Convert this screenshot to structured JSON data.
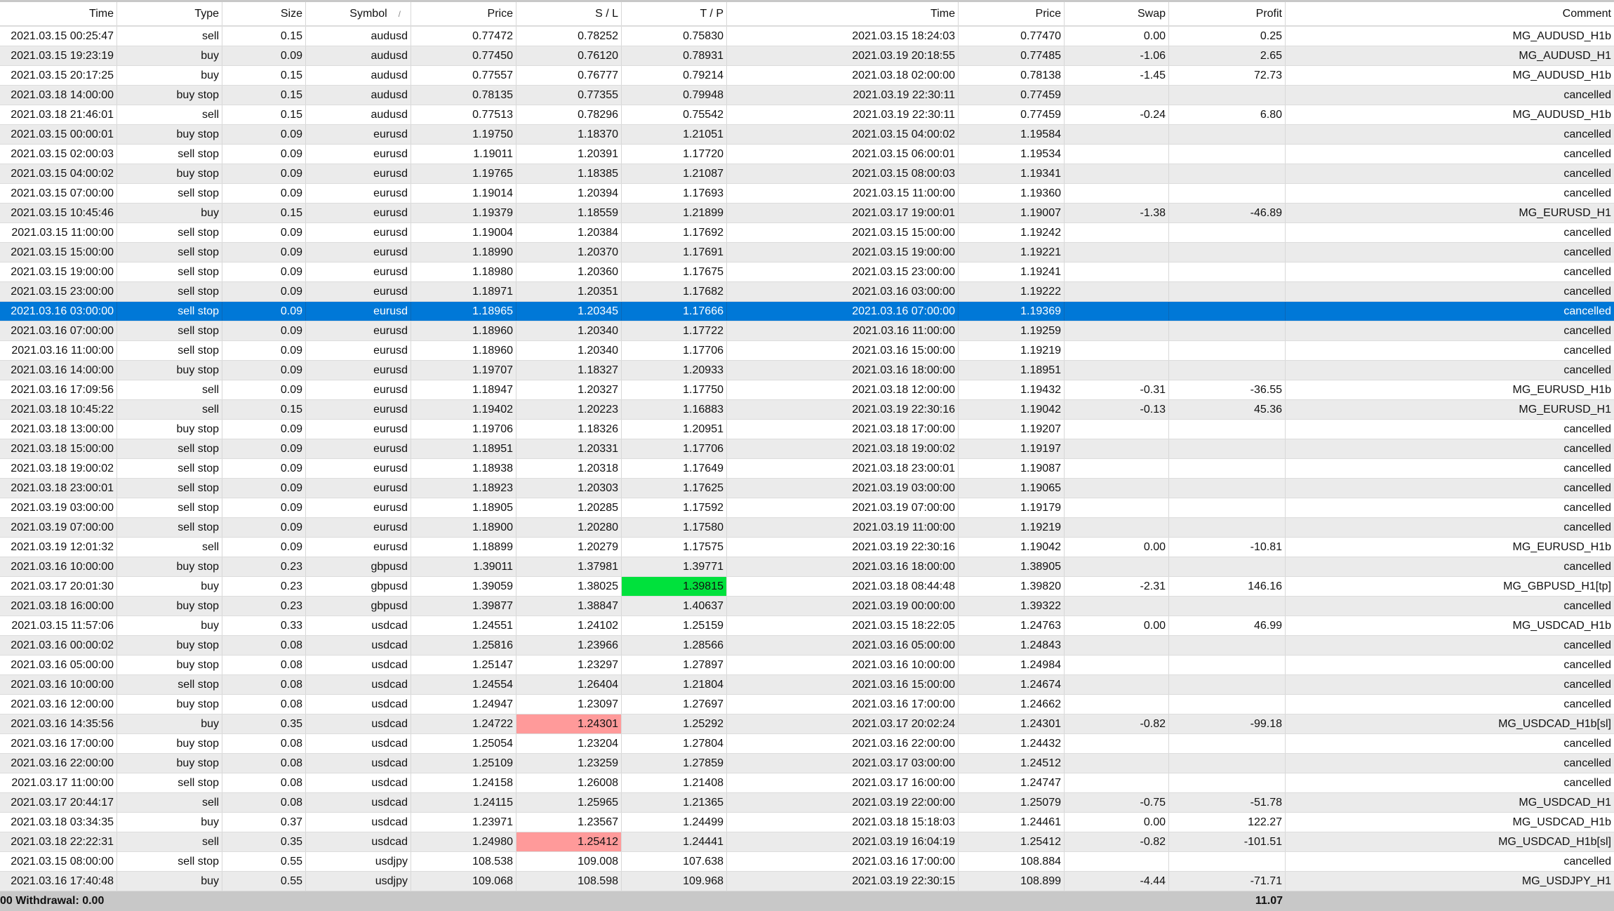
{
  "columns": [
    "Time",
    "Type",
    "Size",
    "Symbol",
    "Price",
    "S / L",
    "T / P",
    "Time",
    "Price",
    "Swap",
    "Profit",
    "Comment"
  ],
  "sort_indicator": "/",
  "selected_row": 14,
  "colors": {
    "selected": "#0078d7",
    "take_profit_hit": "#00e13c",
    "stop_loss_hit": "#ff9a9a",
    "alt_row": "#ebebeb",
    "footer": "#c8c8c8"
  },
  "highlights": [
    {
      "row": 28,
      "col": 6,
      "kind": "take_profit_hit"
    },
    {
      "row": 35,
      "col": 5,
      "kind": "stop_loss_hit"
    },
    {
      "row": 41,
      "col": 5,
      "kind": "stop_loss_hit"
    }
  ],
  "rows": [
    [
      "2021.03.15 00:25:47",
      "sell",
      "0.15",
      "audusd",
      "0.77472",
      "0.78252",
      "0.75830",
      "2021.03.15 18:24:03",
      "0.77470",
      "0.00",
      "0.25",
      "MG_AUDUSD_H1b"
    ],
    [
      "2021.03.15 19:23:19",
      "buy",
      "0.09",
      "audusd",
      "0.77450",
      "0.76120",
      "0.78931",
      "2021.03.19 20:18:55",
      "0.77485",
      "-1.06",
      "2.65",
      "MG_AUDUSD_H1"
    ],
    [
      "2021.03.15 20:17:25",
      "buy",
      "0.15",
      "audusd",
      "0.77557",
      "0.76777",
      "0.79214",
      "2021.03.18 02:00:00",
      "0.78138",
      "-1.45",
      "72.73",
      "MG_AUDUSD_H1b"
    ],
    [
      "2021.03.18 14:00:00",
      "buy stop",
      "0.15",
      "audusd",
      "0.78135",
      "0.77355",
      "0.79948",
      "2021.03.19 22:30:11",
      "0.77459",
      "",
      "",
      "cancelled"
    ],
    [
      "2021.03.18 21:46:01",
      "sell",
      "0.15",
      "audusd",
      "0.77513",
      "0.78296",
      "0.75542",
      "2021.03.19 22:30:11",
      "0.77459",
      "-0.24",
      "6.80",
      "MG_AUDUSD_H1b"
    ],
    [
      "2021.03.15 00:00:01",
      "buy stop",
      "0.09",
      "eurusd",
      "1.19750",
      "1.18370",
      "1.21051",
      "2021.03.15 04:00:02",
      "1.19584",
      "",
      "",
      "cancelled"
    ],
    [
      "2021.03.15 02:00:03",
      "sell stop",
      "0.09",
      "eurusd",
      "1.19011",
      "1.20391",
      "1.17720",
      "2021.03.15 06:00:01",
      "1.19534",
      "",
      "",
      "cancelled"
    ],
    [
      "2021.03.15 04:00:02",
      "buy stop",
      "0.09",
      "eurusd",
      "1.19765",
      "1.18385",
      "1.21087",
      "2021.03.15 08:00:03",
      "1.19341",
      "",
      "",
      "cancelled"
    ],
    [
      "2021.03.15 07:00:00",
      "sell stop",
      "0.09",
      "eurusd",
      "1.19014",
      "1.20394",
      "1.17693",
      "2021.03.15 11:00:00",
      "1.19360",
      "",
      "",
      "cancelled"
    ],
    [
      "2021.03.15 10:45:46",
      "buy",
      "0.15",
      "eurusd",
      "1.19379",
      "1.18559",
      "1.21899",
      "2021.03.17 19:00:01",
      "1.19007",
      "-1.38",
      "-46.89",
      "MG_EURUSD_H1"
    ],
    [
      "2021.03.15 11:00:00",
      "sell stop",
      "0.09",
      "eurusd",
      "1.19004",
      "1.20384",
      "1.17692",
      "2021.03.15 15:00:00",
      "1.19242",
      "",
      "",
      "cancelled"
    ],
    [
      "2021.03.15 15:00:00",
      "sell stop",
      "0.09",
      "eurusd",
      "1.18990",
      "1.20370",
      "1.17691",
      "2021.03.15 19:00:00",
      "1.19221",
      "",
      "",
      "cancelled"
    ],
    [
      "2021.03.15 19:00:00",
      "sell stop",
      "0.09",
      "eurusd",
      "1.18980",
      "1.20360",
      "1.17675",
      "2021.03.15 23:00:00",
      "1.19241",
      "",
      "",
      "cancelled"
    ],
    [
      "2021.03.15 23:00:00",
      "sell stop",
      "0.09",
      "eurusd",
      "1.18971",
      "1.20351",
      "1.17682",
      "2021.03.16 03:00:00",
      "1.19222",
      "",
      "",
      "cancelled"
    ],
    [
      "2021.03.16 03:00:00",
      "sell stop",
      "0.09",
      "eurusd",
      "1.18965",
      "1.20345",
      "1.17666",
      "2021.03.16 07:00:00",
      "1.19369",
      "",
      "",
      "cancelled"
    ],
    [
      "2021.03.16 07:00:00",
      "sell stop",
      "0.09",
      "eurusd",
      "1.18960",
      "1.20340",
      "1.17722",
      "2021.03.16 11:00:00",
      "1.19259",
      "",
      "",
      "cancelled"
    ],
    [
      "2021.03.16 11:00:00",
      "sell stop",
      "0.09",
      "eurusd",
      "1.18960",
      "1.20340",
      "1.17706",
      "2021.03.16 15:00:00",
      "1.19219",
      "",
      "",
      "cancelled"
    ],
    [
      "2021.03.16 14:00:00",
      "buy stop",
      "0.09",
      "eurusd",
      "1.19707",
      "1.18327",
      "1.20933",
      "2021.03.16 18:00:00",
      "1.18951",
      "",
      "",
      "cancelled"
    ],
    [
      "2021.03.16 17:09:56",
      "sell",
      "0.09",
      "eurusd",
      "1.18947",
      "1.20327",
      "1.17750",
      "2021.03.18 12:00:00",
      "1.19432",
      "-0.31",
      "-36.55",
      "MG_EURUSD_H1b"
    ],
    [
      "2021.03.18 10:45:22",
      "sell",
      "0.15",
      "eurusd",
      "1.19402",
      "1.20223",
      "1.16883",
      "2021.03.19 22:30:16",
      "1.19042",
      "-0.13",
      "45.36",
      "MG_EURUSD_H1"
    ],
    [
      "2021.03.18 13:00:00",
      "buy stop",
      "0.09",
      "eurusd",
      "1.19706",
      "1.18326",
      "1.20951",
      "2021.03.18 17:00:00",
      "1.19207",
      "",
      "",
      "cancelled"
    ],
    [
      "2021.03.18 15:00:00",
      "sell stop",
      "0.09",
      "eurusd",
      "1.18951",
      "1.20331",
      "1.17706",
      "2021.03.18 19:00:02",
      "1.19197",
      "",
      "",
      "cancelled"
    ],
    [
      "2021.03.18 19:00:02",
      "sell stop",
      "0.09",
      "eurusd",
      "1.18938",
      "1.20318",
      "1.17649",
      "2021.03.18 23:00:01",
      "1.19087",
      "",
      "",
      "cancelled"
    ],
    [
      "2021.03.18 23:00:01",
      "sell stop",
      "0.09",
      "eurusd",
      "1.18923",
      "1.20303",
      "1.17625",
      "2021.03.19 03:00:00",
      "1.19065",
      "",
      "",
      "cancelled"
    ],
    [
      "2021.03.19 03:00:00",
      "sell stop",
      "0.09",
      "eurusd",
      "1.18905",
      "1.20285",
      "1.17592",
      "2021.03.19 07:00:00",
      "1.19179",
      "",
      "",
      "cancelled"
    ],
    [
      "2021.03.19 07:00:00",
      "sell stop",
      "0.09",
      "eurusd",
      "1.18900",
      "1.20280",
      "1.17580",
      "2021.03.19 11:00:00",
      "1.19219",
      "",
      "",
      "cancelled"
    ],
    [
      "2021.03.19 12:01:32",
      "sell",
      "0.09",
      "eurusd",
      "1.18899",
      "1.20279",
      "1.17575",
      "2021.03.19 22:30:16",
      "1.19042",
      "0.00",
      "-10.81",
      "MG_EURUSD_H1b"
    ],
    [
      "2021.03.16 10:00:00",
      "buy stop",
      "0.23",
      "gbpusd",
      "1.39011",
      "1.37981",
      "1.39771",
      "2021.03.16 18:00:00",
      "1.38905",
      "",
      "",
      "cancelled"
    ],
    [
      "2021.03.17 20:01:30",
      "buy",
      "0.23",
      "gbpusd",
      "1.39059",
      "1.38025",
      "1.39815",
      "2021.03.18 08:44:48",
      "1.39820",
      "-2.31",
      "146.16",
      "MG_GBPUSD_H1[tp]"
    ],
    [
      "2021.03.18 16:00:00",
      "buy stop",
      "0.23",
      "gbpusd",
      "1.39877",
      "1.38847",
      "1.40637",
      "2021.03.19 00:00:00",
      "1.39322",
      "",
      "",
      "cancelled"
    ],
    [
      "2021.03.15 11:57:06",
      "buy",
      "0.33",
      "usdcad",
      "1.24551",
      "1.24102",
      "1.25159",
      "2021.03.15 18:22:05",
      "1.24763",
      "0.00",
      "46.99",
      "MG_USDCAD_H1b"
    ],
    [
      "2021.03.16 00:00:02",
      "buy stop",
      "0.08",
      "usdcad",
      "1.25816",
      "1.23966",
      "1.28566",
      "2021.03.16 05:00:00",
      "1.24843",
      "",
      "",
      "cancelled"
    ],
    [
      "2021.03.16 05:00:00",
      "buy stop",
      "0.08",
      "usdcad",
      "1.25147",
      "1.23297",
      "1.27897",
      "2021.03.16 10:00:00",
      "1.24984",
      "",
      "",
      "cancelled"
    ],
    [
      "2021.03.16 10:00:00",
      "sell stop",
      "0.08",
      "usdcad",
      "1.24554",
      "1.26404",
      "1.21804",
      "2021.03.16 15:00:00",
      "1.24674",
      "",
      "",
      "cancelled"
    ],
    [
      "2021.03.16 12:00:00",
      "buy stop",
      "0.08",
      "usdcad",
      "1.24947",
      "1.23097",
      "1.27697",
      "2021.03.16 17:00:00",
      "1.24662",
      "",
      "",
      "cancelled"
    ],
    [
      "2021.03.16 14:35:56",
      "buy",
      "0.35",
      "usdcad",
      "1.24722",
      "1.24301",
      "1.25292",
      "2021.03.17 20:02:24",
      "1.24301",
      "-0.82",
      "-99.18",
      "MG_USDCAD_H1b[sl]"
    ],
    [
      "2021.03.16 17:00:00",
      "buy stop",
      "0.08",
      "usdcad",
      "1.25054",
      "1.23204",
      "1.27804",
      "2021.03.16 22:00:00",
      "1.24432",
      "",
      "",
      "cancelled"
    ],
    [
      "2021.03.16 22:00:00",
      "buy stop",
      "0.08",
      "usdcad",
      "1.25109",
      "1.23259",
      "1.27859",
      "2021.03.17 03:00:00",
      "1.24512",
      "",
      "",
      "cancelled"
    ],
    [
      "2021.03.17 11:00:00",
      "sell stop",
      "0.08",
      "usdcad",
      "1.24158",
      "1.26008",
      "1.21408",
      "2021.03.17 16:00:00",
      "1.24747",
      "",
      "",
      "cancelled"
    ],
    [
      "2021.03.17 20:44:17",
      "sell",
      "0.08",
      "usdcad",
      "1.24115",
      "1.25965",
      "1.21365",
      "2021.03.19 22:00:00",
      "1.25079",
      "-0.75",
      "-51.78",
      "MG_USDCAD_H1"
    ],
    [
      "2021.03.18 03:34:35",
      "buy",
      "0.37",
      "usdcad",
      "1.23971",
      "1.23567",
      "1.24499",
      "2021.03.18 15:18:03",
      "1.24461",
      "0.00",
      "122.27",
      "MG_USDCAD_H1b"
    ],
    [
      "2021.03.18 22:22:31",
      "sell",
      "0.35",
      "usdcad",
      "1.24980",
      "1.25412",
      "1.24441",
      "2021.03.19 16:04:19",
      "1.25412",
      "-0.82",
      "-101.51",
      "MG_USDCAD_H1b[sl]"
    ],
    [
      "2021.03.15 08:00:00",
      "sell stop",
      "0.55",
      "usdjpy",
      "108.538",
      "109.008",
      "107.638",
      "2021.03.16 17:00:00",
      "108.884",
      "",
      "",
      "cancelled"
    ],
    [
      "2021.03.16 17:40:48",
      "buy",
      "0.55",
      "usdjpy",
      "109.068",
      "108.598",
      "109.968",
      "2021.03.19 22:30:15",
      "108.899",
      "-4.44",
      "-71.71",
      "MG_USDJPY_H1"
    ]
  ],
  "footer": {
    "summary": "00  Withdrawal: 0.00",
    "total_profit": "11.07"
  }
}
